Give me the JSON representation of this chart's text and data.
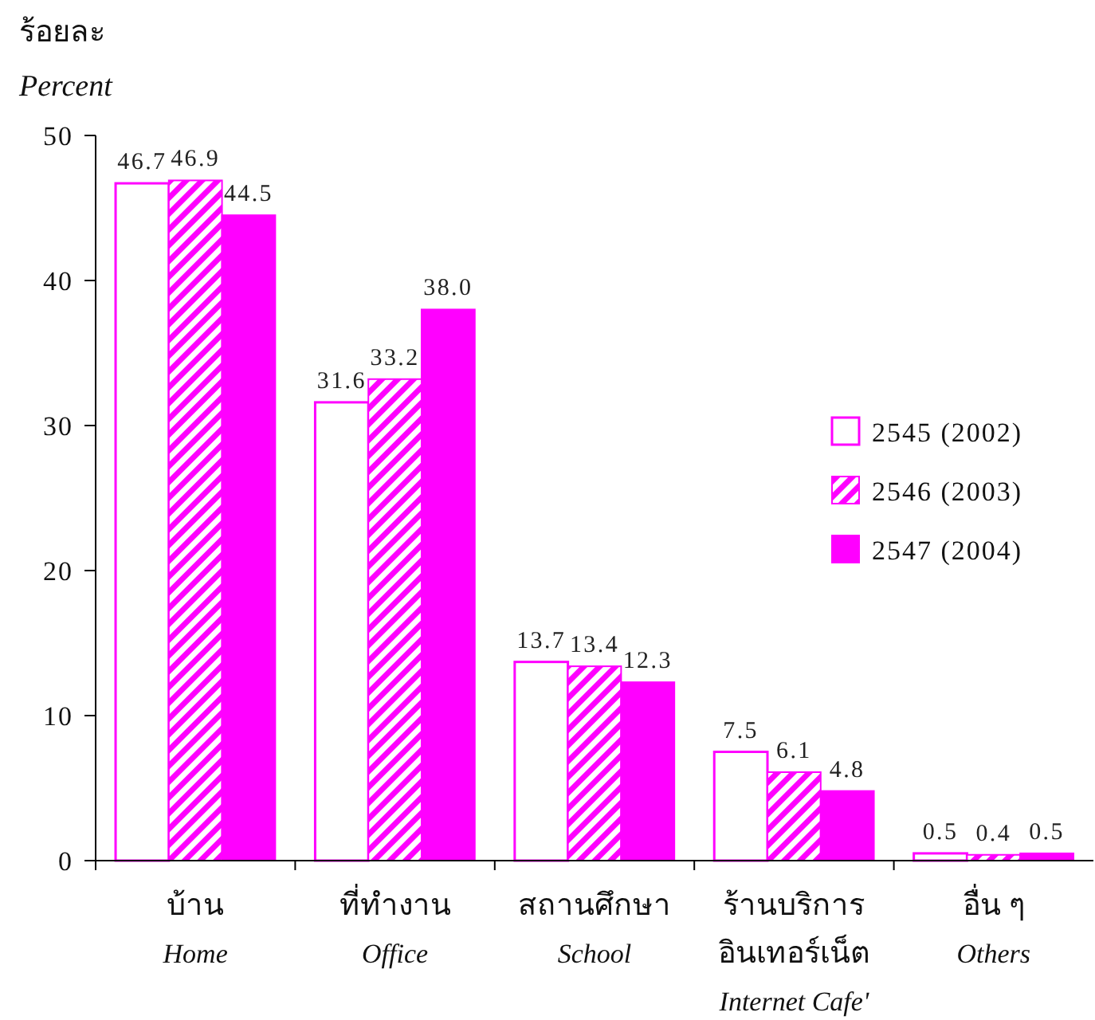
{
  "chart_data": {
    "type": "bar",
    "ylabel": "ร้อยละ\nPercent",
    "categories": [
      "บ้าน\nHome",
      "ที่ทำงาน\nOffice",
      "สถานศึกษา\nSchool",
      "ร้านบริการ\nอินเทอร์เน็ต\nInternet Cafe'",
      "อื่น ๆ\nOthers"
    ],
    "series": [
      {
        "name": "2545 (2002)",
        "color": "#ff00ff",
        "values": [
          46.7,
          31.6,
          13.7,
          7.5,
          0.5
        ],
        "value_labels": [
          "46.7",
          "31.6",
          "13.7",
          "7.5",
          "0.5"
        ]
      },
      {
        "name": "2546 (2003)",
        "color": "#ff00ff",
        "values": [
          46.9,
          33.2,
          13.4,
          6.1,
          0.4
        ],
        "value_labels": [
          "46.9",
          "33.2",
          "13.4",
          "6.1",
          "0.4"
        ]
      },
      {
        "name": "2547 (2004)",
        "color": "#ff00ff",
        "values": [
          44.5,
          38.0,
          12.3,
          4.8,
          0.5
        ],
        "value_labels": [
          "44.5",
          "38.0",
          "12.3",
          "4.8",
          "0.5"
        ]
      }
    ],
    "ylim": [
      0,
      50
    ],
    "yticks": [
      0,
      10,
      20,
      30,
      40,
      50
    ],
    "legend": "right"
  }
}
